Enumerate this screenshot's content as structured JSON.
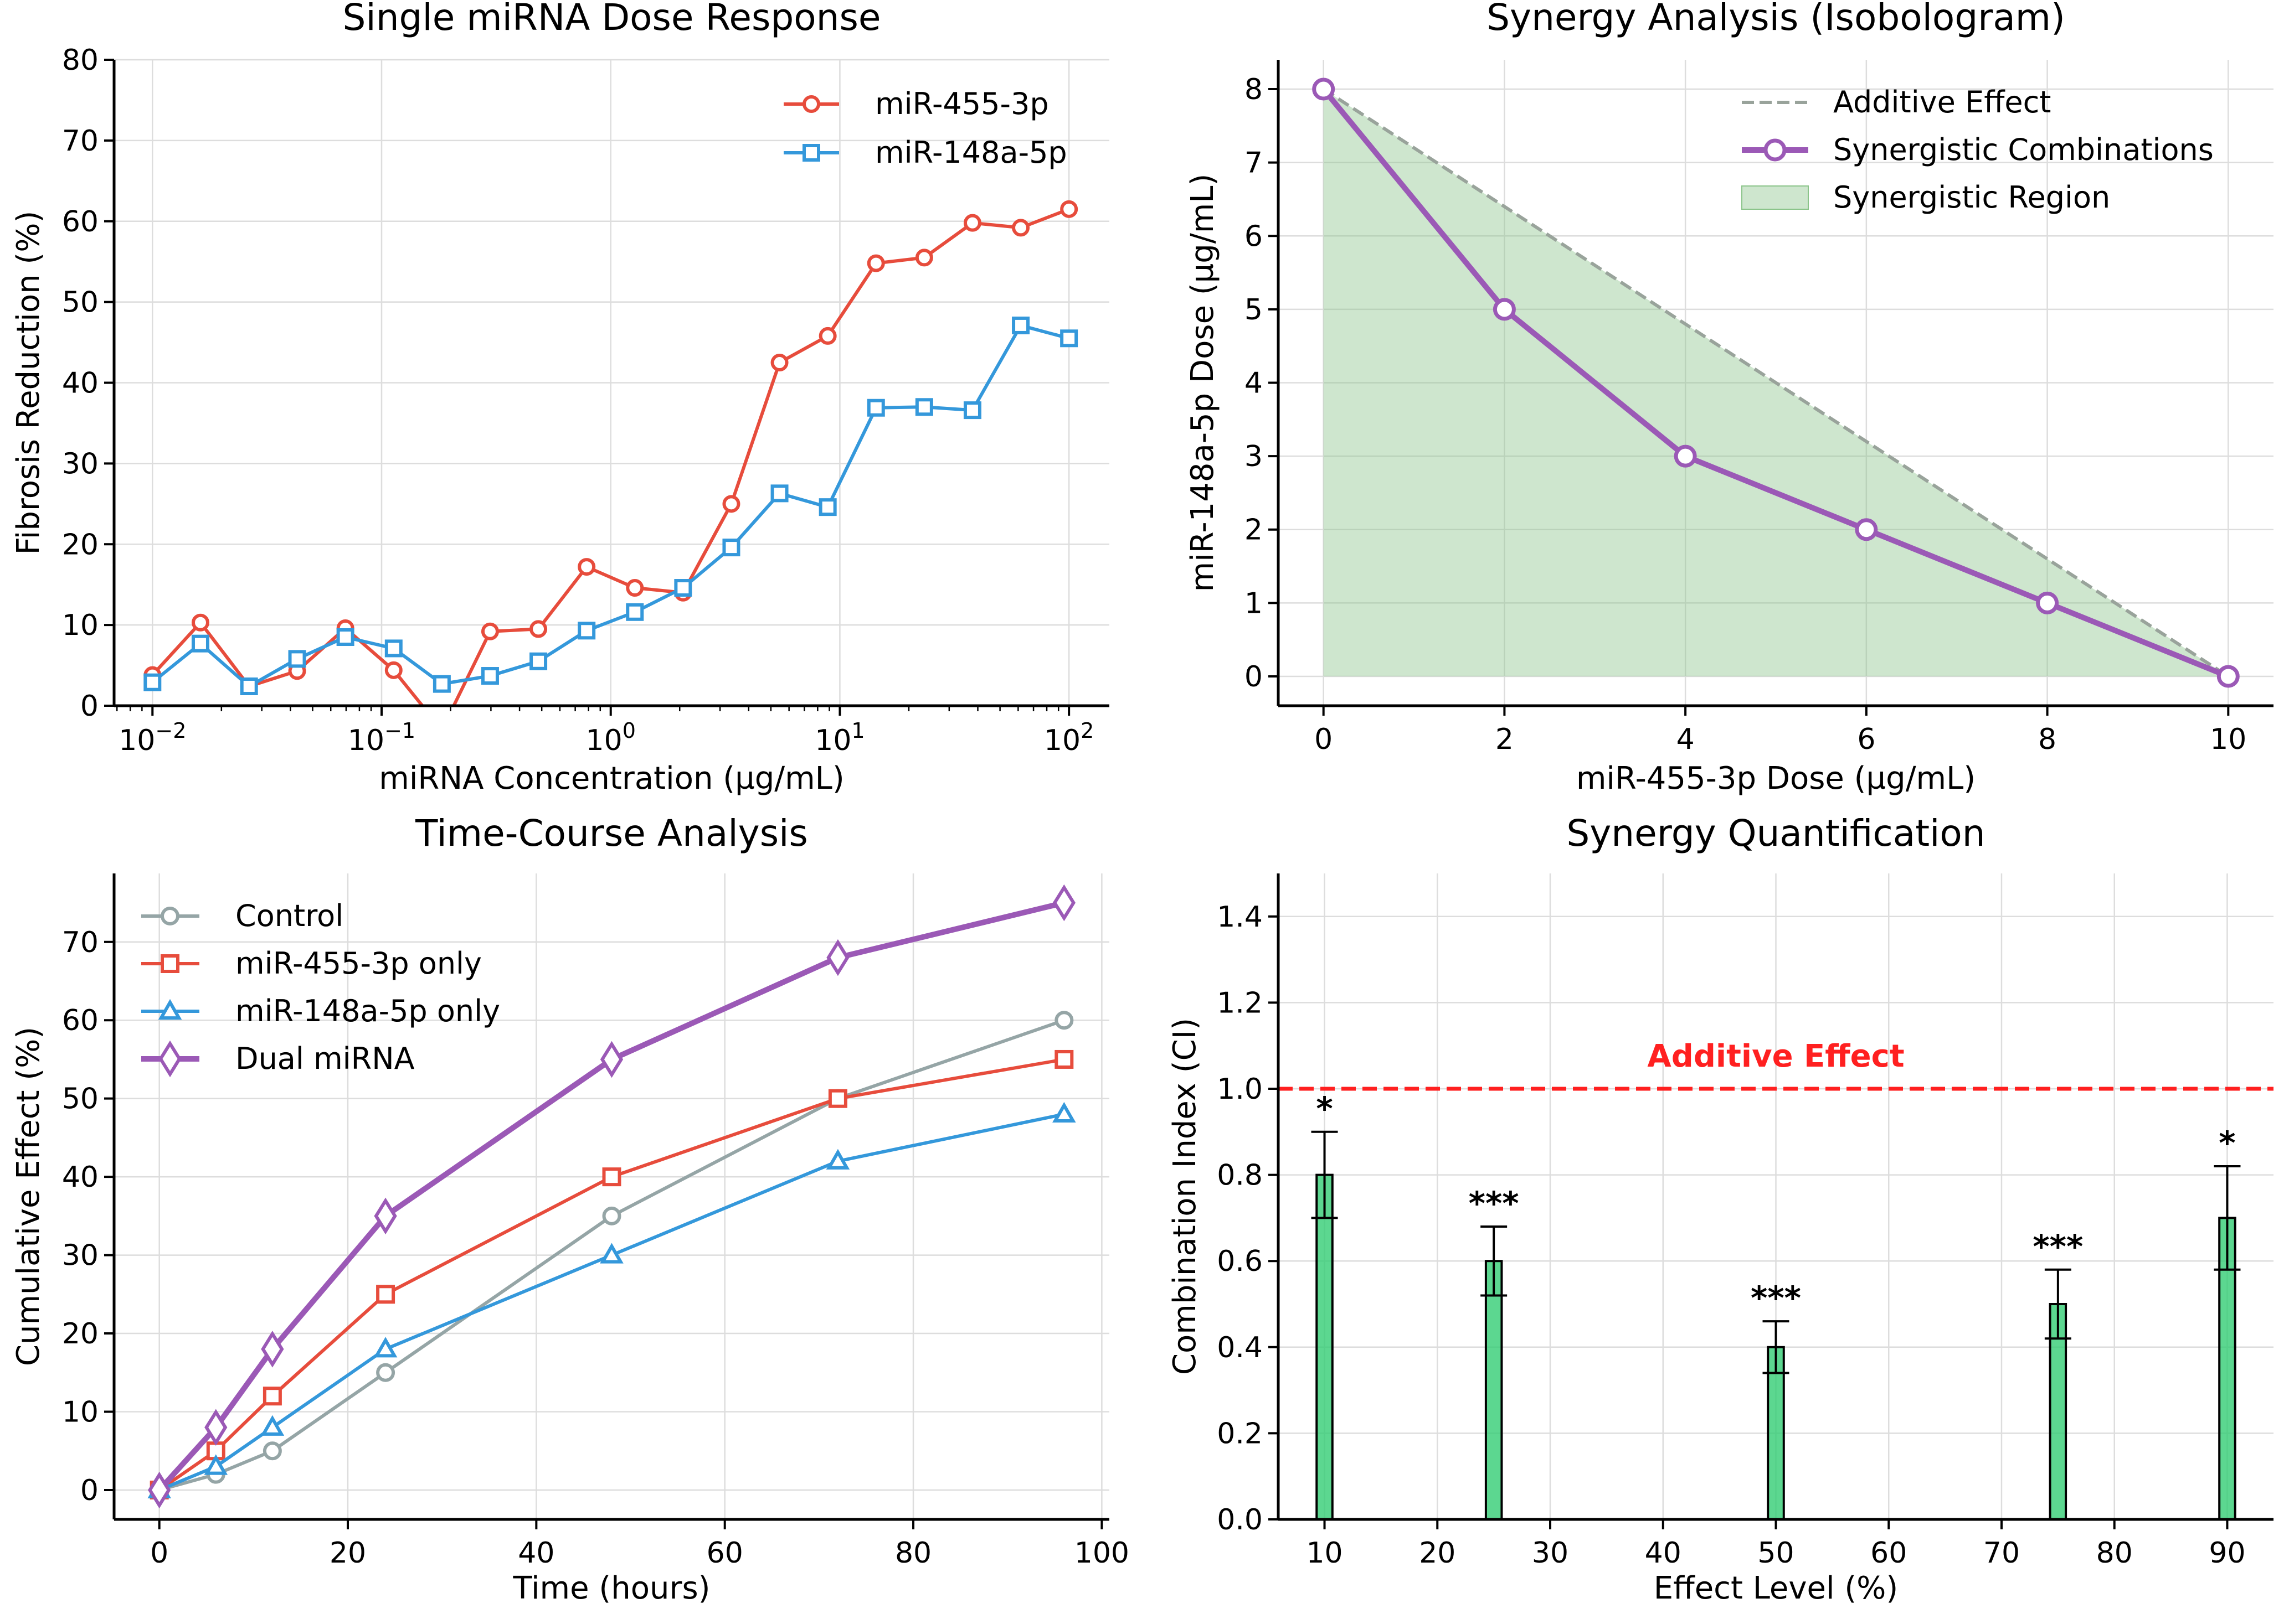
{
  "colors": {
    "red": "#e74c3c",
    "blue": "#3498db",
    "gray": "#95a5a6",
    "purple": "#9b59b6",
    "green_fill": "#8bc48a",
    "dashed_gray": "#99a39b",
    "bar_green": "#2ecc71",
    "ref_red": "#ff2020"
  },
  "chart_data": [
    {
      "id": "dose",
      "type": "line",
      "title": "Single miRNA Dose Response",
      "xlabel": "miRNA Concentration (µg/mL)",
      "ylabel": "Fibrosis Reduction (%)",
      "xscale": "log",
      "xlim": [
        0.0068,
        150
      ],
      "ylim": [
        0,
        80
      ],
      "yticks": [
        0,
        10,
        20,
        30,
        40,
        50,
        60,
        70,
        80
      ],
      "xticks": [
        {
          "value": 0.01,
          "base": "10",
          "exp": "−2"
        },
        {
          "value": 0.1,
          "base": "10",
          "exp": "−1"
        },
        {
          "value": 1,
          "base": "10",
          "exp": "0"
        },
        {
          "value": 10,
          "base": "10",
          "exp": "1"
        },
        {
          "value": 100,
          "base": "10",
          "exp": "2"
        }
      ],
      "grid": true,
      "legend": "top-right",
      "x": [
        0.01,
        0.0162,
        0.0264,
        0.0428,
        0.0695,
        0.1129,
        0.1833,
        0.2976,
        0.4833,
        0.7848,
        1.2743,
        2.0691,
        3.3598,
        5.4556,
        8.8587,
        14.3845,
        23.3572,
        37.9269,
        61.5848,
        100
      ],
      "series": [
        {
          "name": "miR-455-3p",
          "marker": "circle",
          "color": "#e74c3c",
          "values": [
            3.8,
            10.3,
            2.4,
            4.3,
            9.6,
            4.4,
            -3,
            9.2,
            9.5,
            17.2,
            14.6,
            14.0,
            25.0,
            42.5,
            45.8,
            54.8,
            55.5,
            59.8,
            59.2,
            61.5
          ]
        },
        {
          "name": "miR-148a-5p",
          "marker": "square",
          "color": "#3498db",
          "values": [
            2.9,
            7.7,
            2.4,
            5.8,
            8.5,
            7.1,
            2.7,
            3.7,
            5.5,
            9.3,
            11.6,
            14.6,
            19.6,
            26.3,
            24.6,
            36.9,
            37.0,
            36.6,
            47.1,
            45.5
          ]
        }
      ]
    },
    {
      "id": "iso",
      "type": "line",
      "title": "Synergy Analysis (Isobologram)",
      "xlabel": "miR-455-3p Dose (µg/mL)",
      "ylabel": "miR-148a-5p Dose (µg/mL)",
      "xlim": [
        -0.5,
        10.5
      ],
      "ylim": [
        -0.4,
        8.4
      ],
      "xticks": [
        0,
        2,
        4,
        6,
        8,
        10
      ],
      "yticks": [
        0,
        1,
        2,
        3,
        4,
        5,
        6,
        7,
        8
      ],
      "grid": true,
      "legend": "top-right",
      "additive": {
        "name": "Additive Effect",
        "x": [
          0,
          10
        ],
        "y": [
          8,
          0
        ]
      },
      "synergy": {
        "name": "Synergistic Combinations",
        "x": [
          0,
          2,
          4,
          6,
          8,
          10
        ],
        "y": [
          8,
          5,
          3,
          2,
          1,
          0
        ]
      },
      "region": {
        "name": "Synergistic Region"
      }
    },
    {
      "id": "time",
      "type": "line",
      "title": "Time-Course Analysis",
      "xlabel": "Time (hours)",
      "ylabel": "Cumulative Effect (%)",
      "xlim": [
        -4.8,
        100.8
      ],
      "ylim": [
        -3.75,
        78.75
      ],
      "xticks": [
        0,
        20,
        40,
        60,
        80,
        100
      ],
      "yticks": [
        0,
        10,
        20,
        30,
        40,
        50,
        60,
        70
      ],
      "grid": true,
      "legend": "top-left",
      "x": [
        0,
        6,
        12,
        24,
        48,
        72,
        96
      ],
      "series": [
        {
          "name": "Control",
          "marker": "circle",
          "color": "#95a5a6",
          "width": 6,
          "values": [
            0,
            2,
            5,
            15,
            35,
            50,
            60
          ]
        },
        {
          "name": "miR-455-3p only",
          "marker": "square",
          "color": "#e74c3c",
          "width": 6,
          "values": [
            0,
            5,
            12,
            25,
            40,
            50,
            55
          ]
        },
        {
          "name": "miR-148a-5p only",
          "marker": "triangle",
          "color": "#3498db",
          "width": 6,
          "values": [
            0,
            3,
            8,
            18,
            30,
            42,
            48
          ]
        },
        {
          "name": "Dual miRNA",
          "marker": "diamond",
          "color": "#9b59b6",
          "width": 10,
          "values": [
            0,
            8,
            18,
            35,
            55,
            68,
            75
          ]
        }
      ]
    },
    {
      "id": "ci",
      "type": "bar",
      "title": "Synergy Quantification",
      "xlabel": "Effect Level (%)",
      "ylabel": "Combination Index (CI)",
      "xlim": [
        5.9,
        94.1
      ],
      "ylim": [
        0,
        1.5
      ],
      "xticks": [
        10,
        20,
        30,
        40,
        50,
        60,
        70,
        80,
        90
      ],
      "yticks": [
        0.0,
        0.2,
        0.4,
        0.6,
        0.8,
        1.0,
        1.2,
        1.4
      ],
      "ytick_labels": [
        "0.0",
        "0.2",
        "0.4",
        "0.6",
        "0.8",
        "1.0",
        "1.2",
        "1.4"
      ],
      "grid": true,
      "categories": [
        10,
        25,
        50,
        75,
        90
      ],
      "values": [
        0.8,
        0.6,
        0.4,
        0.5,
        0.7
      ],
      "errors": [
        0.1,
        0.08,
        0.06,
        0.08,
        0.12
      ],
      "significance": [
        "*",
        "***",
        "***",
        "***",
        "*"
      ],
      "reference_line": {
        "y": 1.0,
        "label": "Additive Effect"
      }
    }
  ]
}
